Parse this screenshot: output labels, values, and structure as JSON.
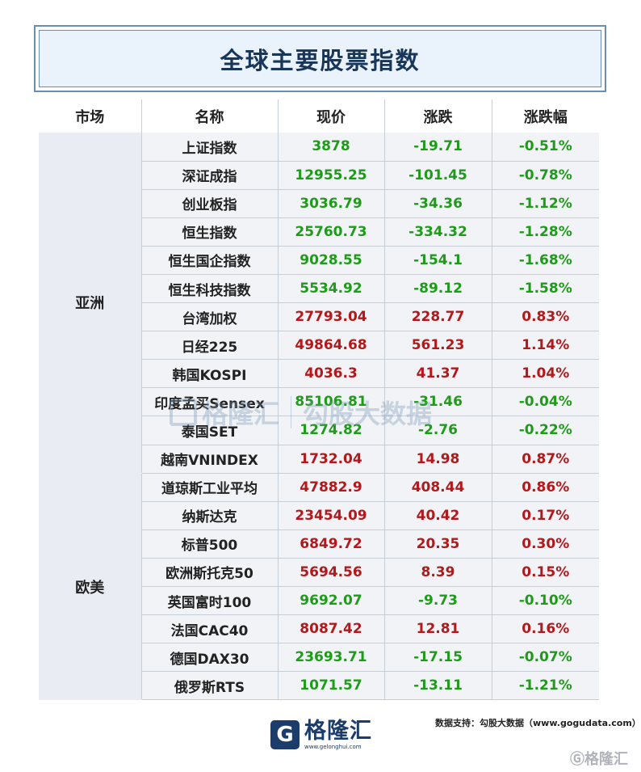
{
  "title": "全球主要股票指数",
  "headers": [
    "市场",
    "名称",
    "现价",
    "涨跌",
    "涨跌幅"
  ],
  "regions": [
    {
      "name": "亚洲",
      "rows": [
        {
          "name": "上证指数",
          "price": "3878",
          "change": "-19.71",
          "pct": "-0.51%",
          "dir": "down"
        },
        {
          "name": "深证成指",
          "price": "12955.25",
          "change": "-101.45",
          "pct": "-0.78%",
          "dir": "down"
        },
        {
          "name": "创业板指",
          "price": "3036.79",
          "change": "-34.36",
          "pct": "-1.12%",
          "dir": "down"
        },
        {
          "name": "恒生指数",
          "price": "25760.73",
          "change": "-334.32",
          "pct": "-1.28%",
          "dir": "down"
        },
        {
          "name": "恒生国企指数",
          "price": "9028.55",
          "change": "-154.1",
          "pct": "-1.68%",
          "dir": "down"
        },
        {
          "name": "恒生科技指数",
          "price": "5534.92",
          "change": "-89.12",
          "pct": "-1.58%",
          "dir": "down"
        },
        {
          "name": "台湾加权",
          "price": "27793.04",
          "change": "228.77",
          "pct": "0.83%",
          "dir": "up"
        },
        {
          "name": "日经225",
          "price": "49864.68",
          "change": "561.23",
          "pct": "1.14%",
          "dir": "up"
        },
        {
          "name": "韩国KOSPI",
          "price": "4036.3",
          "change": "41.37",
          "pct": "1.04%",
          "dir": "up"
        },
        {
          "name": "印度孟买Sensex",
          "price": "85106.81",
          "change": "-31.46",
          "pct": "-0.04%",
          "dir": "down"
        },
        {
          "name": "泰国SET",
          "price": "1274.82",
          "change": "-2.76",
          "pct": "-0.22%",
          "dir": "down"
        },
        {
          "name": "越南VNINDEX",
          "price": "1732.04",
          "change": "14.98",
          "pct": "0.87%",
          "dir": "up"
        }
      ]
    },
    {
      "name": "欧美",
      "rows": [
        {
          "name": "道琼斯工业平均",
          "price": "47882.9",
          "change": "408.44",
          "pct": "0.86%",
          "dir": "up"
        },
        {
          "name": "纳斯达克",
          "price": "23454.09",
          "change": "40.42",
          "pct": "0.17%",
          "dir": "up"
        },
        {
          "name": "标普500",
          "price": "6849.72",
          "change": "20.35",
          "pct": "0.30%",
          "dir": "up"
        },
        {
          "name": "欧洲斯托克50",
          "price": "5694.56",
          "change": "8.39",
          "pct": "0.15%",
          "dir": "up"
        },
        {
          "name": "英国富时100",
          "price": "9692.07",
          "change": "-9.73",
          "pct": "-0.10%",
          "dir": "down"
        },
        {
          "name": "法国CAC40",
          "price": "8087.42",
          "change": "12.81",
          "pct": "0.16%",
          "dir": "up"
        },
        {
          "name": "德国DAX30",
          "price": "23693.71",
          "change": "-17.15",
          "pct": "-0.07%",
          "dir": "down"
        },
        {
          "name": "俄罗斯RTS",
          "price": "1071.57",
          "change": "-13.11",
          "pct": "-1.21%",
          "dir": "down"
        }
      ]
    }
  ],
  "colors": {
    "up": "#b3181b",
    "down": "#1f9b1a",
    "title": "#18365a",
    "brand": "#1c3d6b"
  },
  "footer": {
    "logo_icon": "gelonghui-logo-icon",
    "logo_text": "格隆汇",
    "logo_url": "www.gelonghui.com",
    "source": "数据支持：勾股大数据（www.gogudata.com）",
    "corner_mark": "Ⓖ格隆汇"
  },
  "watermark": {
    "brand_a": "格隆汇",
    "brand_a_url": "www.gelonghui.com",
    "brand_b": "勾股大数据",
    "brand_b_url": "www.gogudata.com"
  }
}
